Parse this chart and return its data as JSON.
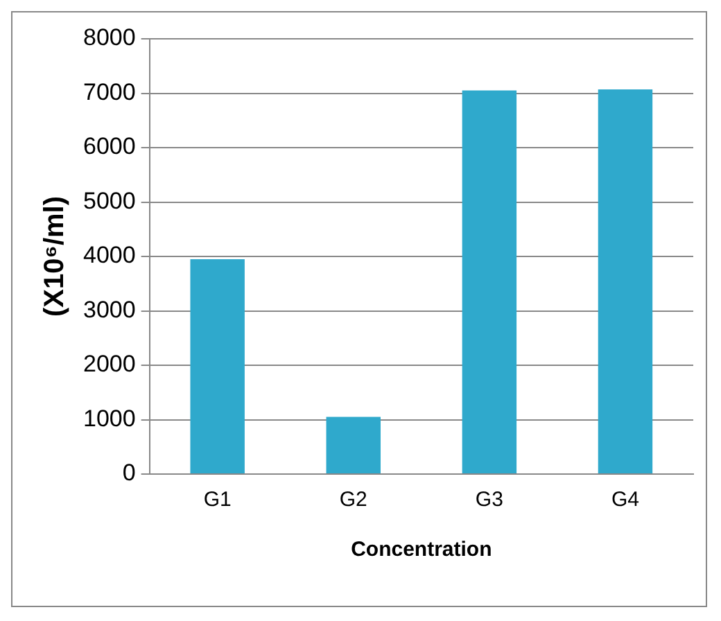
{
  "chart_data": {
    "type": "bar",
    "xlabel": "Concentration",
    "ylabel": "(X10⁶/ml)",
    "categories": [
      "G1",
      "G2",
      "G3",
      "G4"
    ],
    "values": [
      3950,
      1050,
      7050,
      7070
    ],
    "color": "#2fa9cc",
    "ylim": [
      0,
      8000
    ],
    "yticks": [
      0,
      1000,
      2000,
      3000,
      4000,
      5000,
      6000,
      7000,
      8000
    ],
    "grid": "y",
    "legend": false
  }
}
